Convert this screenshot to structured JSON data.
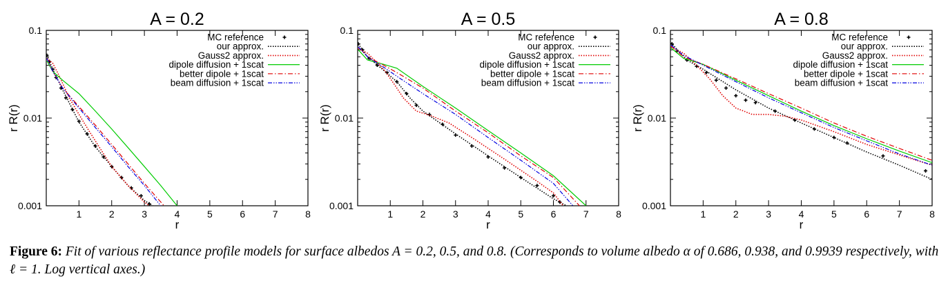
{
  "chart_data": [
    {
      "type": "line",
      "title": "A = 0.2",
      "xlabel": "r",
      "ylabel": "r R(r)",
      "xlim": [
        0,
        8
      ],
      "ylim": [
        0.001,
        0.1
      ],
      "yscale": "log",
      "x_ticks": [
        "1",
        "2",
        "3",
        "4",
        "5",
        "6",
        "7",
        "8"
      ],
      "y_ticks": [
        "0.001",
        "0.01",
        "0.1"
      ],
      "legend_position": "top-right",
      "series": [
        {
          "name": "MC reference",
          "style": "points",
          "color": "#000000",
          "points": [
            [
              0.02,
              0.052
            ],
            [
              0.1,
              0.044
            ],
            [
              0.2,
              0.036
            ],
            [
              0.3,
              0.029
            ],
            [
              0.45,
              0.022
            ],
            [
              0.6,
              0.017
            ],
            [
              0.8,
              0.0125
            ],
            [
              1.0,
              0.0092
            ],
            [
              1.25,
              0.0066
            ],
            [
              1.5,
              0.0048
            ],
            [
              1.75,
              0.0036
            ],
            [
              2.0,
              0.0028
            ],
            [
              2.3,
              0.0021
            ],
            [
              2.6,
              0.0016
            ],
            [
              2.9,
              0.0013
            ],
            [
              3.15,
              0.00105
            ]
          ]
        },
        {
          "name": "our approx.",
          "style": "dotted",
          "color": "#000000",
          "points": [
            [
              0.02,
              0.052
            ],
            [
              0.2,
              0.036
            ],
            [
              0.5,
              0.021
            ],
            [
              1.0,
              0.009
            ],
            [
              1.5,
              0.0047
            ],
            [
              2.0,
              0.0028
            ],
            [
              2.5,
              0.0017
            ],
            [
              3.0,
              0.00115
            ],
            [
              3.25,
              0.001
            ]
          ]
        },
        {
          "name": "Gauss2 approx.",
          "style": "dotted",
          "color": "#e00000",
          "points": [
            [
              0.02,
              0.048
            ],
            [
              0.2,
              0.042
            ],
            [
              0.4,
              0.03
            ],
            [
              0.7,
              0.017
            ],
            [
              1.0,
              0.011
            ],
            [
              1.3,
              0.0072
            ],
            [
              1.6,
              0.0048
            ],
            [
              2.0,
              0.0028
            ],
            [
              2.5,
              0.0017
            ],
            [
              3.0,
              0.0011
            ],
            [
              3.15,
              0.001
            ]
          ]
        },
        {
          "name": "dipole diffusion + 1scat",
          "style": "solid",
          "color": "#00cc00",
          "points": [
            [
              0.02,
              0.045
            ],
            [
              0.2,
              0.034
            ],
            [
              0.5,
              0.027
            ],
            [
              1.0,
              0.019
            ],
            [
              1.5,
              0.012
            ],
            [
              2.0,
              0.0075
            ],
            [
              2.5,
              0.0046
            ],
            [
              3.0,
              0.0028
            ],
            [
              3.5,
              0.0017
            ],
            [
              4.0,
              0.001
            ]
          ]
        },
        {
          "name": "better dipole + 1scat",
          "style": "dashdot",
          "color": "#e00000",
          "points": [
            [
              0.02,
              0.048
            ],
            [
              0.2,
              0.034
            ],
            [
              0.5,
              0.022
            ],
            [
              1.0,
              0.0135
            ],
            [
              1.5,
              0.0083
            ],
            [
              2.0,
              0.005
            ],
            [
              2.5,
              0.003
            ],
            [
              3.0,
              0.0018
            ],
            [
              3.6,
              0.001
            ]
          ]
        },
        {
          "name": "beam diffusion + 1scat",
          "style": "dashdotdot",
          "color": "#0000e0",
          "points": [
            [
              0.02,
              0.048
            ],
            [
              0.2,
              0.034
            ],
            [
              0.5,
              0.022
            ],
            [
              1.0,
              0.013
            ],
            [
              1.5,
              0.0078
            ],
            [
              2.0,
              0.0047
            ],
            [
              2.5,
              0.0028
            ],
            [
              3.0,
              0.0017
            ],
            [
              3.5,
              0.001
            ]
          ]
        }
      ]
    },
    {
      "type": "line",
      "title": "A = 0.5",
      "xlabel": "r",
      "ylabel": "r R(r)",
      "xlim": [
        0,
        8
      ],
      "ylim": [
        0.001,
        0.1
      ],
      "yscale": "log",
      "x_ticks": [
        "1",
        "2",
        "3",
        "4",
        "5",
        "6",
        "7",
        "8"
      ],
      "y_ticks": [
        "0.001",
        "0.01",
        "0.1"
      ],
      "legend_position": "top-right",
      "series": [
        {
          "name": "MC reference",
          "style": "points",
          "color": "#000000",
          "points": [
            [
              0.02,
              0.07
            ],
            [
              0.15,
              0.06
            ],
            [
              0.35,
              0.048
            ],
            [
              0.6,
              0.04
            ],
            [
              0.9,
              0.033
            ],
            [
              1.2,
              0.026
            ],
            [
              1.5,
              0.019
            ],
            [
              1.8,
              0.014
            ],
            [
              2.2,
              0.011
            ],
            [
              2.6,
              0.0085
            ],
            [
              3.0,
              0.0064
            ],
            [
              3.5,
              0.0048
            ],
            [
              4.0,
              0.0036
            ],
            [
              4.5,
              0.0027
            ],
            [
              5.0,
              0.0021
            ],
            [
              5.5,
              0.0017
            ],
            [
              6.0,
              0.0013
            ],
            [
              6.2,
              0.0011
            ]
          ]
        },
        {
          "name": "our approx.",
          "style": "dotted",
          "color": "#000000",
          "points": [
            [
              0.02,
              0.07
            ],
            [
              0.3,
              0.05
            ],
            [
              0.8,
              0.035
            ],
            [
              1.2,
              0.026
            ],
            [
              1.6,
              0.017
            ],
            [
              2.0,
              0.012
            ],
            [
              3.0,
              0.0066
            ],
            [
              4.0,
              0.0037
            ],
            [
              5.0,
              0.0021
            ],
            [
              6.0,
              0.0012
            ],
            [
              6.4,
              0.001
            ]
          ]
        },
        {
          "name": "Gauss2 approx.",
          "style": "dotted",
          "color": "#e00000",
          "points": [
            [
              0.02,
              0.062
            ],
            [
              0.3,
              0.055
            ],
            [
              0.8,
              0.036
            ],
            [
              1.1,
              0.025
            ],
            [
              1.4,
              0.017
            ],
            [
              1.8,
              0.012
            ],
            [
              2.2,
              0.0108
            ],
            [
              2.8,
              0.0088
            ],
            [
              3.5,
              0.006
            ],
            [
              4.5,
              0.0034
            ],
            [
              5.5,
              0.0019
            ],
            [
              6.0,
              0.0014
            ],
            [
              6.3,
              0.001
            ]
          ]
        },
        {
          "name": "dipole diffusion + 1scat",
          "style": "solid",
          "color": "#00cc00",
          "points": [
            [
              0.02,
              0.06
            ],
            [
              0.3,
              0.046
            ],
            [
              0.8,
              0.041
            ],
            [
              1.2,
              0.037
            ],
            [
              2.0,
              0.023
            ],
            [
              3.0,
              0.013
            ],
            [
              4.0,
              0.0072
            ],
            [
              5.0,
              0.004
            ],
            [
              6.0,
              0.0022
            ],
            [
              7.0,
              0.001
            ]
          ]
        },
        {
          "name": "better dipole + 1scat",
          "style": "dashdot",
          "color": "#e00000",
          "points": [
            [
              0.02,
              0.065
            ],
            [
              0.3,
              0.05
            ],
            [
              0.8,
              0.04
            ],
            [
              1.2,
              0.033
            ],
            [
              2.0,
              0.022
            ],
            [
              3.0,
              0.012
            ],
            [
              4.0,
              0.0068
            ],
            [
              5.0,
              0.0037
            ],
            [
              6.0,
              0.0021
            ],
            [
              6.8,
              0.001
            ]
          ]
        },
        {
          "name": "beam diffusion + 1scat",
          "style": "dashdotdot",
          "color": "#0000e0",
          "points": [
            [
              0.02,
              0.065
            ],
            [
              0.3,
              0.05
            ],
            [
              0.8,
              0.038
            ],
            [
              1.2,
              0.03
            ],
            [
              2.0,
              0.019
            ],
            [
              3.0,
              0.011
            ],
            [
              4.0,
              0.006
            ],
            [
              5.0,
              0.0033
            ],
            [
              6.0,
              0.0018
            ],
            [
              6.6,
              0.001
            ]
          ]
        }
      ]
    },
    {
      "type": "line",
      "title": "A = 0.8",
      "xlabel": "r",
      "ylabel": "r R(r)",
      "xlim": [
        0,
        8
      ],
      "ylim": [
        0.001,
        0.1
      ],
      "yscale": "log",
      "x_ticks": [
        "1",
        "2",
        "3",
        "4",
        "5",
        "6",
        "7",
        "8"
      ],
      "y_ticks": [
        "0.001",
        "0.01",
        "0.1"
      ],
      "legend_position": "top-right",
      "series": [
        {
          "name": "MC reference",
          "style": "points",
          "color": "#000000",
          "points": [
            [
              0.05,
              0.07
            ],
            [
              0.2,
              0.058
            ],
            [
              0.5,
              0.046
            ],
            [
              0.8,
              0.039
            ],
            [
              1.1,
              0.033
            ],
            [
              1.4,
              0.027
            ],
            [
              1.7,
              0.022
            ],
            [
              2.0,
              0.018
            ],
            [
              2.3,
              0.016
            ],
            [
              2.6,
              0.015
            ],
            [
              3.2,
              0.012
            ],
            [
              3.8,
              0.0095
            ],
            [
              4.4,
              0.0075
            ],
            [
              5.0,
              0.006
            ],
            [
              5.4,
              0.0052
            ],
            [
              6.5,
              0.0037
            ],
            [
              7.8,
              0.0025
            ]
          ]
        },
        {
          "name": "our approx.",
          "style": "dotted",
          "color": "#000000",
          "points": [
            [
              0.02,
              0.072
            ],
            [
              0.5,
              0.046
            ],
            [
              1.0,
              0.036
            ],
            [
              2.0,
              0.021
            ],
            [
              3.0,
              0.013
            ],
            [
              4.0,
              0.0088
            ],
            [
              5.0,
              0.006
            ],
            [
              6.0,
              0.0041
            ],
            [
              7.0,
              0.0029
            ],
            [
              8.0,
              0.002
            ]
          ]
        },
        {
          "name": "Gauss2 approx.",
          "style": "dotted",
          "color": "#e00000",
          "points": [
            [
              0.02,
              0.065
            ],
            [
              0.4,
              0.055
            ],
            [
              0.8,
              0.04
            ],
            [
              1.2,
              0.028
            ],
            [
              1.6,
              0.018
            ],
            [
              2.0,
              0.013
            ],
            [
              2.5,
              0.011
            ],
            [
              3.0,
              0.011
            ],
            [
              3.5,
              0.0105
            ],
            [
              4.0,
              0.0095
            ],
            [
              5.0,
              0.007
            ],
            [
              6.0,
              0.005
            ],
            [
              7.0,
              0.0038
            ],
            [
              8.0,
              0.0029
            ]
          ]
        },
        {
          "name": "dipole diffusion + 1scat",
          "style": "solid",
          "color": "#00cc00",
          "points": [
            [
              0.02,
              0.063
            ],
            [
              0.4,
              0.048
            ],
            [
              1.0,
              0.041
            ],
            [
              2.0,
              0.027
            ],
            [
              3.0,
              0.018
            ],
            [
              4.0,
              0.012
            ],
            [
              5.0,
              0.0082
            ],
            [
              6.0,
              0.0058
            ],
            [
              7.0,
              0.0042
            ],
            [
              8.0,
              0.0031
            ]
          ]
        },
        {
          "name": "better dipole + 1scat",
          "style": "dashdot",
          "color": "#e00000",
          "points": [
            [
              0.02,
              0.066
            ],
            [
              0.4,
              0.05
            ],
            [
              1.0,
              0.041
            ],
            [
              2.0,
              0.028
            ],
            [
              3.0,
              0.019
            ],
            [
              4.0,
              0.013
            ],
            [
              5.0,
              0.0088
            ],
            [
              6.0,
              0.0062
            ],
            [
              7.0,
              0.0045
            ],
            [
              8.0,
              0.0033
            ]
          ]
        },
        {
          "name": "beam diffusion + 1scat",
          "style": "dashdotdot",
          "color": "#0000e0",
          "points": [
            [
              0.02,
              0.068
            ],
            [
              0.4,
              0.052
            ],
            [
              1.0,
              0.04
            ],
            [
              2.0,
              0.026
            ],
            [
              3.0,
              0.017
            ],
            [
              4.0,
              0.0115
            ],
            [
              5.0,
              0.0078
            ],
            [
              6.0,
              0.0055
            ],
            [
              7.0,
              0.0039
            ],
            [
              8.0,
              0.0029
            ]
          ]
        }
      ]
    }
  ],
  "caption": {
    "label": "Figure 6:",
    "text": "Fit of various reflectance profile models for surface albedos A = 0.2, 0.5, and 0.8. (Corresponds to volume albedo α of 0.686, 0.938, and 0.9939 respectively, with ℓ = 1. Log vertical axes.)"
  }
}
